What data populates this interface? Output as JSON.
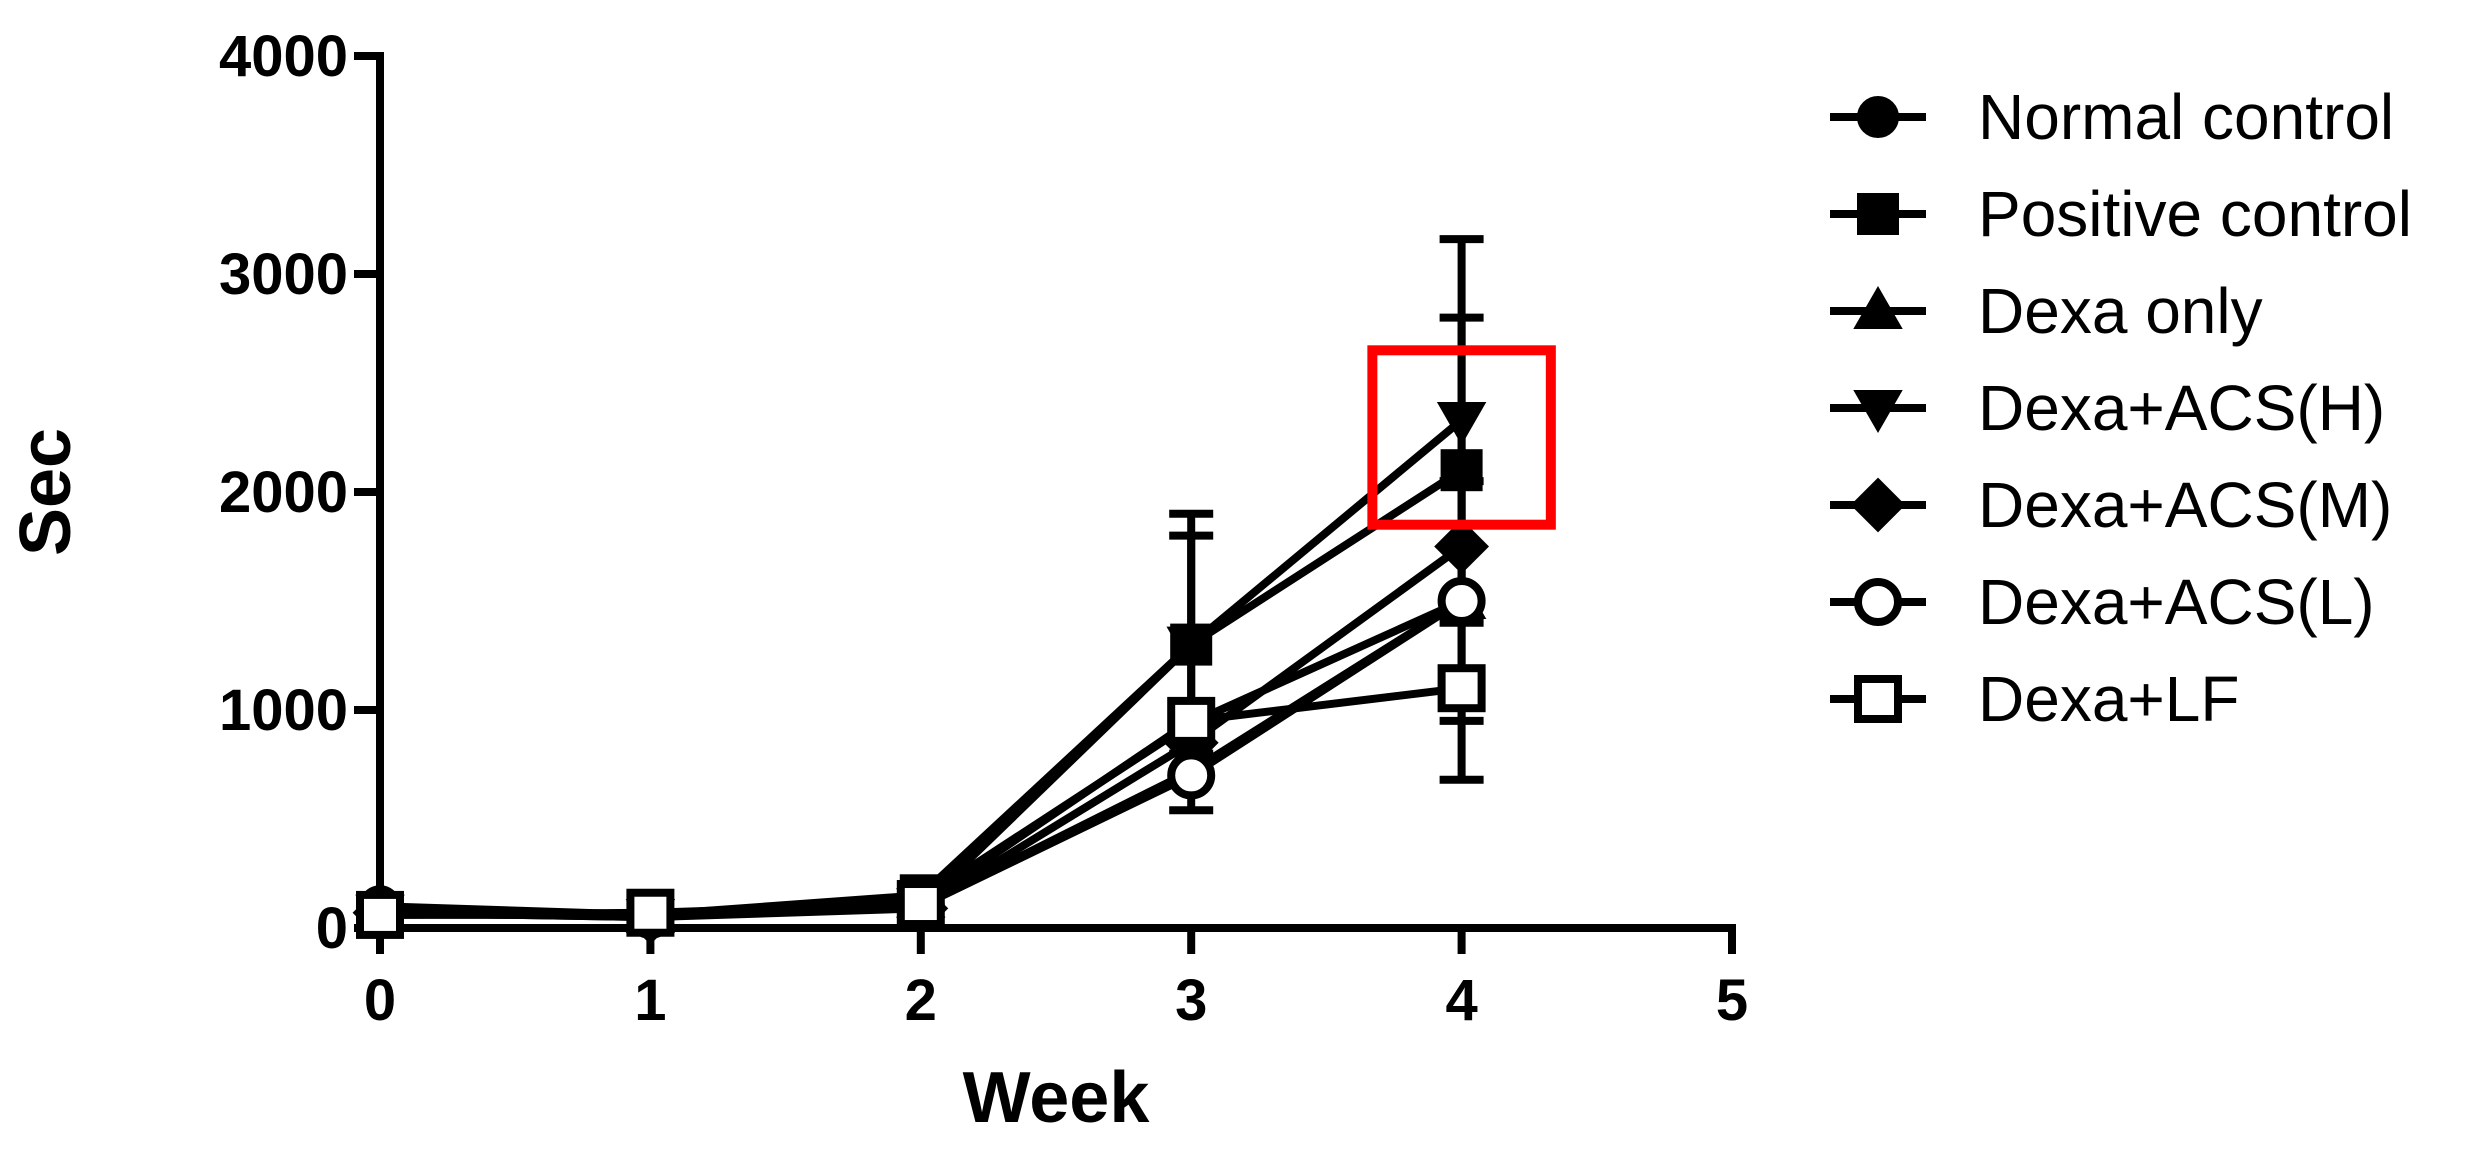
{
  "chart_data": {
    "type": "line",
    "xlabel": "Week",
    "ylabel": "Sec",
    "x": [
      0,
      1,
      2,
      3,
      4
    ],
    "xlim": [
      0,
      5
    ],
    "ylim": [
      0,
      4000
    ],
    "xticks": [
      "0",
      "1",
      "2",
      "3",
      "4",
      "5"
    ],
    "yticks": [
      "0",
      "1000",
      "2000",
      "3000",
      "4000"
    ],
    "grid": false,
    "legend_position": "right",
    "series": [
      {
        "name": "Normal control",
        "marker": "circle-filled",
        "values": [
          100,
          60,
          100,
          720,
          1500
        ],
        "errors": [
          0,
          0,
          0,
          0,
          0
        ]
      },
      {
        "name": "Positive control",
        "marker": "square-filled",
        "values": [
          70,
          60,
          150,
          1300,
          2100
        ],
        "errors": [
          0,
          0,
          0,
          600,
          700
        ]
      },
      {
        "name": "Dexa only",
        "marker": "triangle-up-filled",
        "values": [
          70,
          60,
          130,
          940,
          1500
        ],
        "errors": [
          0,
          0,
          0,
          0,
          0
        ]
      },
      {
        "name": "Dexa+ACS(H)",
        "marker": "triangle-down-filled",
        "values": [
          70,
          50,
          100,
          1300,
          2330
        ],
        "errors": [
          0,
          0,
          0,
          500,
          830
        ]
      },
      {
        "name": "Dexa+ACS(M)",
        "marker": "diamond-filled",
        "values": [
          70,
          50,
          90,
          850,
          1750
        ],
        "errors": [
          0,
          0,
          0,
          0,
          0
        ]
      },
      {
        "name": "Dexa+ACS(L)",
        "marker": "circle-open",
        "values": [
          60,
          60,
          100,
          700,
          1500
        ],
        "errors": [
          0,
          0,
          0,
          160,
          550
        ]
      },
      {
        "name": "Dexa+LF",
        "marker": "square-open",
        "values": [
          60,
          70,
          110,
          950,
          1100
        ],
        "errors": [
          0,
          0,
          0,
          0,
          420
        ]
      }
    ],
    "highlight": {
      "color": "#ff0000",
      "x_range": [
        3.67,
        4.33
      ],
      "y_range": [
        1850,
        2650
      ]
    }
  }
}
